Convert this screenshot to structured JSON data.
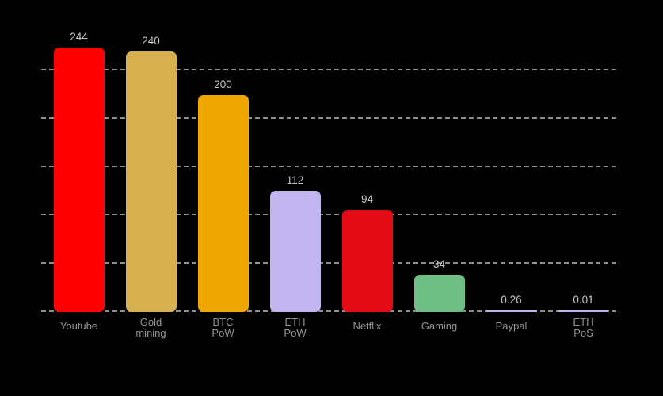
{
  "chart_data": {
    "type": "bar",
    "title": "",
    "xlabel": "",
    "ylabel": "",
    "categories": [
      "Youtube",
      "Gold mining",
      "BTC PoW",
      "ETH PoW",
      "Netflix",
      "Gaming",
      "Paypal",
      "ETH PoS"
    ],
    "category_label_lines": [
      [
        "Youtube"
      ],
      [
        "Gold",
        "mining"
      ],
      [
        "BTC",
        "PoW"
      ],
      [
        "ETH",
        "PoW"
      ],
      [
        "Netflix"
      ],
      [
        "Gaming"
      ],
      [
        "Paypal"
      ],
      [
        "ETH",
        "PoS"
      ]
    ],
    "values": [
      244,
      240,
      200,
      112,
      94,
      34,
      0.26,
      0.01
    ],
    "value_labels": [
      "244",
      "240",
      "200",
      "112",
      "94",
      "34",
      "0.26",
      "0.01"
    ],
    "bar_colors": [
      "#ff0000",
      "#d6b04e",
      "#f0a800",
      "#c3b6f0",
      "#e30b16",
      "#6fbe86",
      "#c0b6ee",
      "#c0b6ee"
    ],
    "ylim": [
      0,
      260
    ],
    "grid": "horizontal-dashed",
    "gridline_count": 6,
    "legend": "none",
    "background_color": "#000000",
    "grid_color": "#8f8f8f",
    "value_label_color": "#c6c6c6",
    "category_label_color": "#969696"
  }
}
